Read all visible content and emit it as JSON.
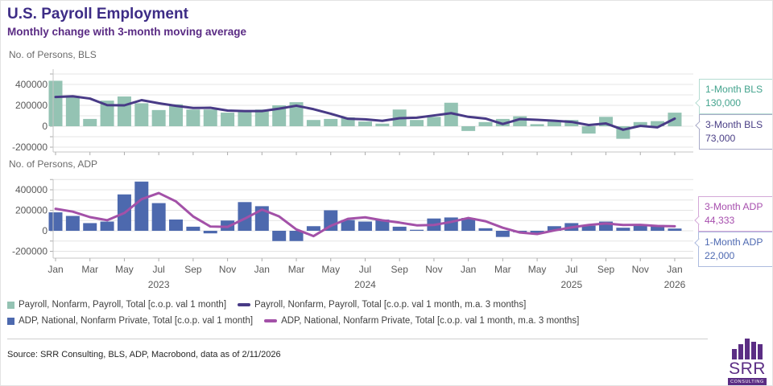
{
  "header": {
    "title": "U.S. Payroll Employment",
    "subtitle": "Monthly change with 3-month moving average"
  },
  "chart_data": [
    {
      "type": "bar",
      "id": "bls",
      "axis_title": "No. of Persons, BLS",
      "categories": [
        "Jan 2023",
        "Feb 2023",
        "Mar 2023",
        "Apr 2023",
        "May 2023",
        "Jun 2023",
        "Jul 2023",
        "Aug 2023",
        "Sep 2023",
        "Oct 2023",
        "Nov 2023",
        "Dec 2023",
        "Jan 2024",
        "Feb 2024",
        "Mar 2024",
        "Apr 2024",
        "May 2024",
        "Jun 2024",
        "Jul 2024",
        "Aug 2024",
        "Sep 2024",
        "Oct 2024",
        "Nov 2024",
        "Dec 2024",
        "Jan 2025",
        "Feb 2025",
        "Mar 2025",
        "Apr 2025",
        "May 2025",
        "Jun 2025",
        "Jul 2025",
        "Aug 2025",
        "Sep 2025",
        "Oct 2025",
        "Nov 2025",
        "Dec 2025",
        "Jan 2026"
      ],
      "series": [
        {
          "name": "Payroll, Nonfarm, Payroll, Total [c.o.p. val 1 month]",
          "style": "bar",
          "color": "#94c3b3",
          "values": [
            435000,
            290000,
            70000,
            245000,
            285000,
            220000,
            155000,
            210000,
            160000,
            160000,
            130000,
            145000,
            160000,
            200000,
            230000,
            60000,
            70000,
            85000,
            45000,
            25000,
            160000,
            60000,
            90000,
            225000,
            -45000,
            40000,
            70000,
            95000,
            20000,
            45000,
            60000,
            -70000,
            90000,
            -120000,
            40000,
            49000,
            130000
          ]
        },
        {
          "name": "Payroll, Nonfarm, Payroll, Total [c.o.p. val 1 month, m.a. 3 months]",
          "style": "line",
          "color": "#483a86",
          "derived": "3-month moving average of bar series",
          "prior_values": [
            270000,
            135000
          ]
        }
      ],
      "ylim": [
        -250000,
        550000
      ],
      "grid": true,
      "y_tick_labels": [
        "400000",
        "200000",
        "0",
        "-200000"
      ],
      "callouts": [
        {
          "label": "1-Month BLS",
          "value": "130,000",
          "color": "#43a38d",
          "border": "#b5dcd2"
        },
        {
          "label": "3-Month BLS",
          "value": "73,000",
          "color": "#4a3f86",
          "border": "#a9abc8"
        }
      ]
    },
    {
      "type": "bar",
      "id": "adp",
      "axis_title": "No. of Persons, ADP",
      "categories": [
        "Jan 2023",
        "Feb 2023",
        "Mar 2023",
        "Apr 2023",
        "May 2023",
        "Jun 2023",
        "Jul 2023",
        "Aug 2023",
        "Sep 2023",
        "Oct 2023",
        "Nov 2023",
        "Dec 2023",
        "Jan 2024",
        "Feb 2024",
        "Mar 2024",
        "Apr 2024",
        "May 2024",
        "Jun 2024",
        "Jul 2024",
        "Aug 2024",
        "Sep 2024",
        "Oct 2024",
        "Nov 2024",
        "Dec 2024",
        "Jan 2025",
        "Feb 2025",
        "Mar 2025",
        "Apr 2025",
        "May 2025",
        "Jun 2025",
        "Jul 2025",
        "Aug 2025",
        "Sep 2025",
        "Oct 2025",
        "Nov 2025",
        "Dec 2025",
        "Jan 2026"
      ],
      "series": [
        {
          "name": "ADP, National, Nonfarm Private, Total [c.o.p. val 1 month]",
          "style": "bar",
          "color": "#4d69ae",
          "values": [
            180000,
            145000,
            75000,
            90000,
            355000,
            480000,
            270000,
            110000,
            40000,
            -25000,
            100000,
            280000,
            240000,
            -100000,
            -100000,
            45000,
            200000,
            105000,
            90000,
            110000,
            40000,
            10000,
            120000,
            130000,
            125000,
            25000,
            -60000,
            -15000,
            -20000,
            45000,
            75000,
            50000,
            90000,
            30000,
            55000,
            56000,
            22000
          ]
        },
        {
          "name": "ADP, National, Nonfarm Private, Total [c.o.p. val 1 month, m.a. 3 months]",
          "style": "line",
          "color": "#a351a8",
          "derived": "3-month moving average of bar series",
          "prior_values": [
            230000,
            235000
          ]
        }
      ],
      "ylim": [
        -270000,
        500000
      ],
      "grid": true,
      "y_tick_labels": [
        "400000",
        "200000",
        "0",
        "-200000"
      ],
      "callouts": [
        {
          "label": "3-Month ADP",
          "value": "44,333",
          "color": "#a74fae",
          "border": "#d4a8d8"
        },
        {
          "label": "1-Month ADP",
          "value": "22,000",
          "color": "#4f6ab2",
          "border": "#adbbdf"
        }
      ]
    }
  ],
  "x_axis": {
    "tick_labels": [
      "Jan",
      "Mar",
      "May",
      "Jul",
      "Sep",
      "Nov",
      "Jan",
      "Mar",
      "May",
      "Jul",
      "Sep",
      "Nov",
      "Jan",
      "Mar",
      "May",
      "Jul",
      "Sep",
      "Nov",
      "Jan"
    ],
    "years": [
      {
        "label": "2023",
        "month_index": 6
      },
      {
        "label": "2024",
        "month_index": 18
      },
      {
        "label": "2025",
        "month_index": 30
      },
      {
        "label": "2026",
        "month_index": 36
      }
    ]
  },
  "legend": [
    {
      "marker": "bar-swatch",
      "color": "#94c3b3",
      "label": "Payroll, Nonfarm, Payroll, Total [c.o.p. val 1 month]"
    },
    {
      "marker": "line-swatch",
      "color": "#483a86",
      "label": "Payroll, Nonfarm, Payroll, Total [c.o.p. val 1 month, m.a. 3 months]"
    },
    {
      "marker": "bar-swatch",
      "color": "#4d69ae",
      "label": "ADP, National, Nonfarm Private, Total [c.o.p. val 1 month]"
    },
    {
      "marker": "line-swatch",
      "color": "#a351a8",
      "label": "ADP, National, Nonfarm Private, Total [c.o.p. val 1 month, m.a. 3 months]"
    }
  ],
  "footer": {
    "source": "Source: SRR Consulting, BLS, ADP, Macrobond, data as of 2/11/2026"
  },
  "logo": {
    "text": "SRR",
    "sub": "CONSULTING"
  },
  "colors": {
    "title": "#3d2c86",
    "subtitle": "#5a2b84",
    "gridline": "#e4e4e4",
    "axis_line": "#c6c6c6",
    "tick_text": "#595959",
    "bls_bar": "#94c3b3",
    "bls_line": "#483a86",
    "adp_bar": "#4d69ae",
    "adp_line": "#a351a8",
    "logo_purple": "#5b2d84"
  }
}
